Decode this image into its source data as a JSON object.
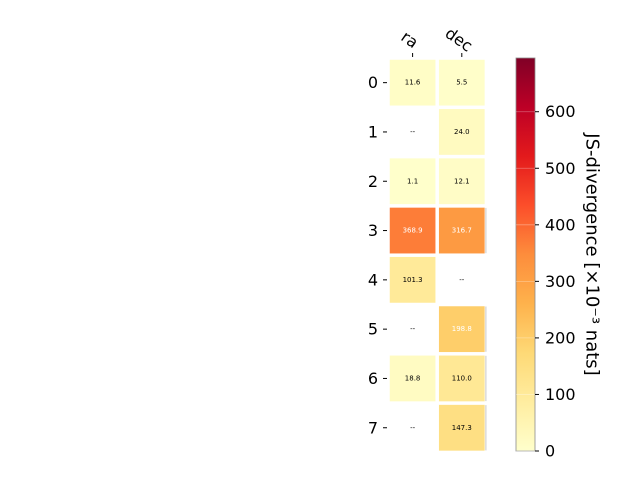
{
  "chart_data": {
    "type": "heatmap",
    "columns": [
      "ra",
      "dec"
    ],
    "rows": [
      "0",
      "1",
      "2",
      "3",
      "4",
      "5",
      "6",
      "7"
    ],
    "values": [
      [
        11.6,
        5.5
      ],
      [
        null,
        24.0
      ],
      [
        1.1,
        12.1
      ],
      [
        368.9,
        316.7
      ],
      [
        101.3,
        null
      ],
      [
        null,
        198.8
      ],
      [
        18.8,
        110.0
      ],
      [
        null,
        147.3
      ]
    ],
    "cell_labels": [
      [
        "11.6",
        "5.5"
      ],
      [
        "--",
        "24.0"
      ],
      [
        "1.1",
        "12.1"
      ],
      [
        "368.9",
        "316.7"
      ],
      [
        "101.3",
        "--"
      ],
      [
        "--",
        "198.8"
      ],
      [
        "18.8",
        "110.0"
      ],
      [
        "--",
        "147.3"
      ]
    ],
    "colorbar": {
      "label": "JS-divergence [×10⁻³ nats]",
      "min": 0,
      "max": 695,
      "ticks": [
        0,
        100,
        200,
        300,
        400,
        500,
        600
      ],
      "tick_labels": [
        "0",
        "100",
        "200",
        "300",
        "400",
        "500",
        "600"
      ],
      "colormap": "YlOrRd"
    },
    "grid": false,
    "legend": "none"
  }
}
